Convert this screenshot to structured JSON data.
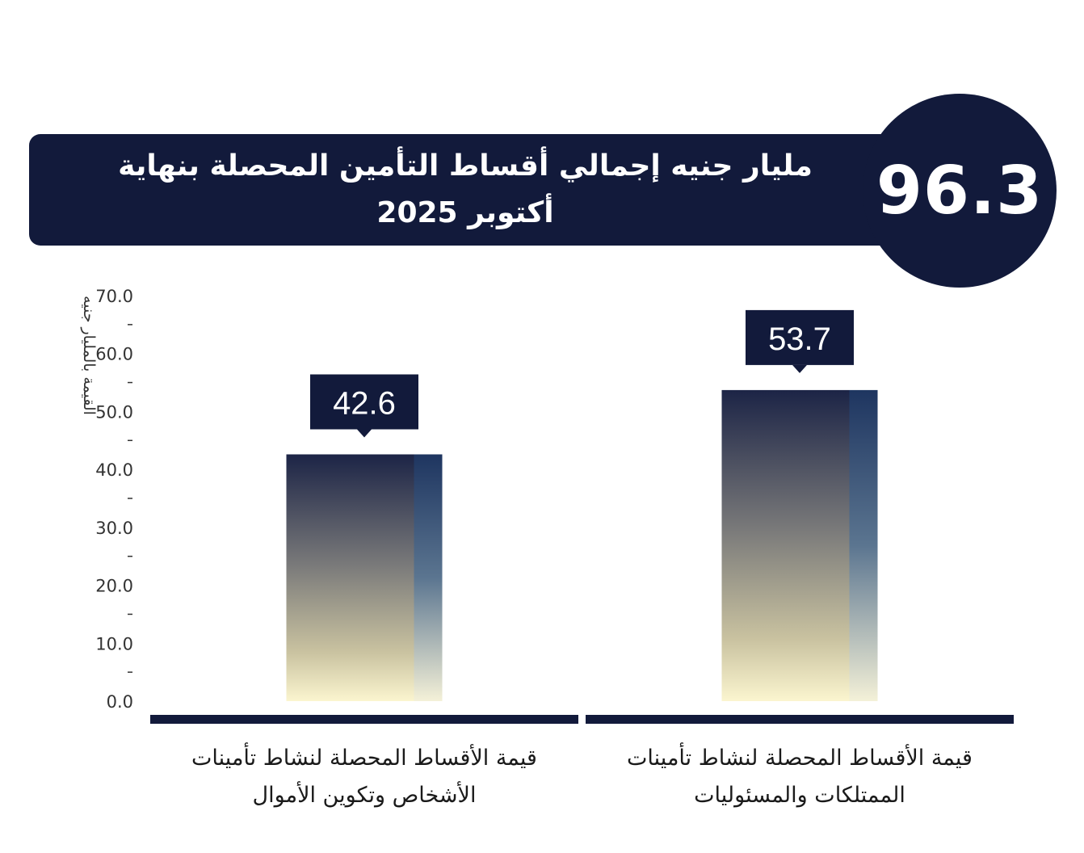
{
  "headline": {
    "value": "96.3",
    "text": "مليار جنيه إجمالي أقساط التأمين المحصلة بنهاية أكتوبر 2025"
  },
  "chart_data": {
    "type": "bar",
    "title": "",
    "xlabel": "",
    "ylabel": "القيمة بالمليار جنيه",
    "ylim": [
      0,
      70
    ],
    "yticks": [
      "0.0",
      "10.0",
      "20.0",
      "30.0",
      "40.0",
      "50.0",
      "60.0",
      "70.0"
    ],
    "categories": [
      "قيمة الأقساط المحصلة لنشاط تأمينات الأشخاص وتكوين الأموال",
      "قيمة الأقساط المحصلة لنشاط تأمينات الممتلكات والمسئوليات"
    ],
    "values": [
      42.6,
      53.7
    ],
    "value_labels": [
      "42.6",
      "53.7"
    ],
    "grid": false
  },
  "colors": {
    "navy": "#121a3b",
    "bar_top": "#1c2446",
    "bar_bottom": "#fbf5cf",
    "side_top": "#1e3560",
    "side_bottom": "#f4f1d8"
  }
}
